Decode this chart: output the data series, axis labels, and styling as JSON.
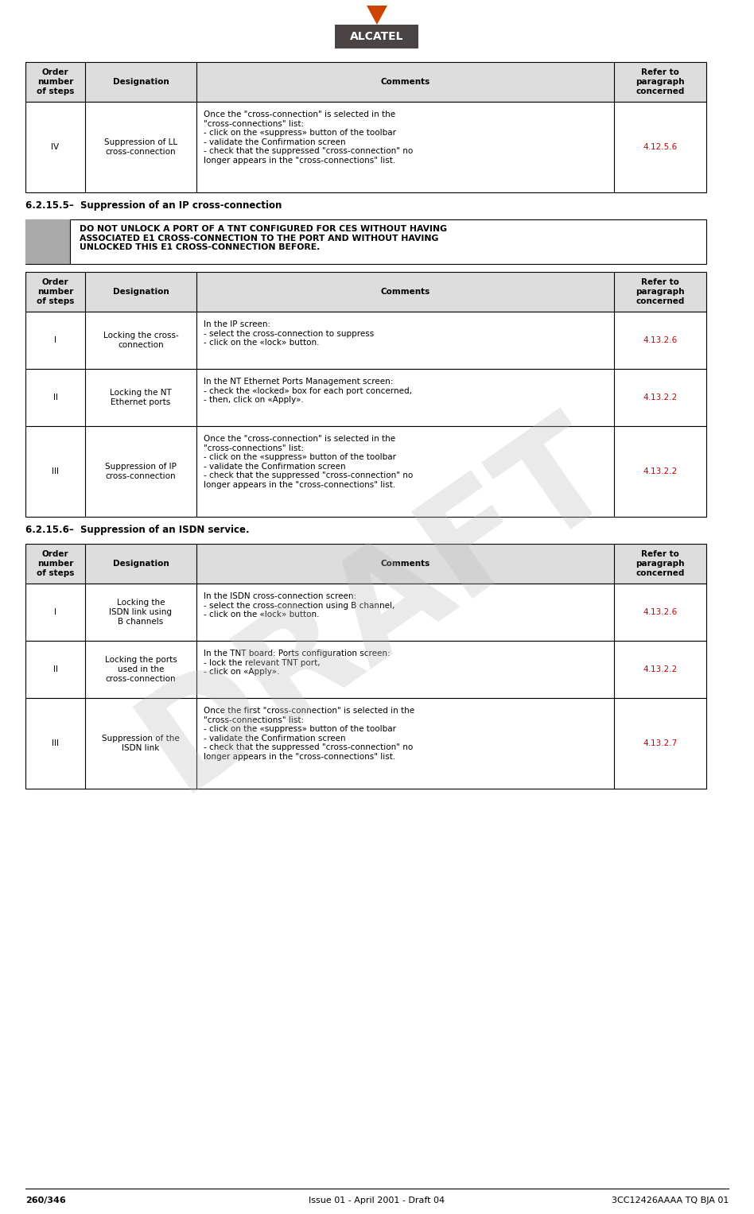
{
  "page_width": 9.48,
  "page_height": 15.27,
  "bg_color": "#ffffff",
  "logo_text": "ALCATEL",
  "logo_bg": "#4a4444",
  "logo_text_color": "#ffffff",
  "arrow_color": "#cc4400",
  "footer_left": "260/346",
  "footer_center": "Issue 01 - April 2001 - Draft 04",
  "footer_right": "3CC12426AAAA TQ BJA 01",
  "draft_watermark": "DRAFT",
  "section1_header": "6.2.15.5–  Suppression of an IP cross-connection",
  "section2_header": "6.2.15.6–  Suppression of an ISDN service.",
  "warning_text": "DO NOT UNLOCK A PORT OF A TNT CONFIGURED FOR CES WITHOUT HAVING\nASSOCIATED E1 CROSS-CONNECTION TO THE PORT AND WITHOUT HAVING\nUNLOCKED THIS E1 CROSS-CONNECTION BEFORE.",
  "warning_box_color": "#aaaaaa",
  "col_headers": [
    "Order\nnumber\nof steps",
    "Designation",
    "Comments",
    "Refer to\nparagraph\nconcerned"
  ],
  "header_bg": "#dddddd",
  "ref_color": "#cc0000",
  "table0": {
    "rows": [
      {
        "step": "IV",
        "designation": "Suppression of LL\ncross-connection",
        "comments": "Once the \"cross-connection\" is selected in the\n\"cross-connections\" list:\n- click on the «suppress» button of the toolbar\n- validate the Confirmation screen\n- check that the suppressed \"cross-connection\" no\nlonger appears in the \"cross-connections\" list.",
        "ref": "4.12.5.6"
      }
    ]
  },
  "table1": {
    "rows": [
      {
        "step": "I",
        "designation": "Locking the cross-\nconnection",
        "comments": "In the IP screen:\n- select the cross-connection to suppress\n- click on the «lock» button.",
        "ref": "4.13.2.6"
      },
      {
        "step": "II",
        "designation": "Locking the NT\nEthernet ports",
        "comments": "In the NT Ethernet Ports Management screen:\n- check the «locked» box for each port concerned,\n- then, click on «Apply».",
        "ref": "4.13.2.2"
      },
      {
        "step": "III",
        "designation": "Suppression of IP\ncross-connection",
        "comments": "Once the \"cross-connection\" is selected in the\n\"cross-connections\" list:\n- click on the «suppress» button of the toolbar\n- validate the Confirmation screen\n- check that the suppressed \"cross-connection\" no\nlonger appears in the \"cross-connections\" list.",
        "ref": "4.13.2.2"
      }
    ]
  },
  "table2": {
    "rows": [
      {
        "step": "I",
        "designation": "Locking the\nISDN link using\nB channels",
        "comments": "In the ISDN cross-connection screen:\n- select the cross-connection using B channel,\n- click on the «lock» button.",
        "ref": "4.13.2.6"
      },
      {
        "step": "II",
        "designation": "Locking the ports\nused in the\ncross-connection",
        "comments": "In the TNT board: Ports configuration screen:\n- lock the relevant TNT port,\n- click on «Apply».",
        "ref": "4.13.2.2"
      },
      {
        "step": "III",
        "designation": "Suppression of the\nISDN link",
        "comments": "Once the first \"cross-connection\" is selected in the\n\"cross-connections\" list:\n- click on the «suppress» button of the toolbar\n- validate the Confirmation screen\n- check that the suppressed \"cross-connection\" no\nlonger appears in the \"cross-connections\" list.",
        "ref": "4.13.2.7"
      }
    ]
  }
}
